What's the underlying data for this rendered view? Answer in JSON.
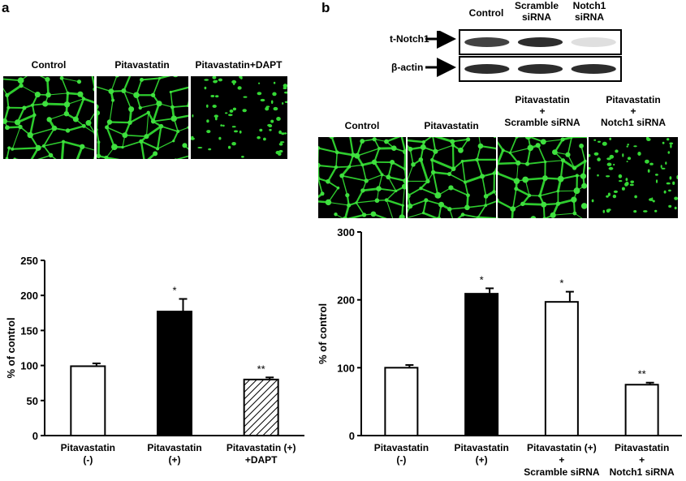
{
  "panel_a": {
    "letter": "a",
    "image_labels": [
      "Control",
      "Pitavastatin",
      "Pitavastatin+DAPT"
    ],
    "image_patterns": [
      "network-dense",
      "network-dense",
      "dots-sparse"
    ]
  },
  "panel_b": {
    "letter": "b",
    "blot": {
      "lane_labels": [
        [
          "Control"
        ],
        [
          "Scramble",
          "siRNA"
        ],
        [
          "Notch1",
          "siRNA"
        ]
      ],
      "bands": [
        "t-Notch1",
        "β-actin"
      ],
      "band_intensity": {
        "t-Notch1": [
          0.9,
          1.0,
          0.15
        ],
        "β-actin": [
          1.0,
          1.0,
          1.0
        ]
      }
    },
    "image_labels": [
      [
        "Control"
      ],
      [
        "Pitavastatin"
      ],
      [
        "Pitavastatin",
        "+",
        "Scramble siRNA"
      ],
      [
        "Pitavastatin",
        "+",
        "Notch1 siRNA"
      ]
    ],
    "image_patterns": [
      "network-dense",
      "network-dense",
      "network-dense",
      "dots-sparse"
    ]
  },
  "chart_data": [
    {
      "type": "bar",
      "ylabel": "% of control",
      "ylim": [
        0,
        250
      ],
      "yticks": [
        0,
        50,
        100,
        150,
        200,
        250
      ],
      "categories": [
        [
          "Pitavastatin",
          "(-)"
        ],
        [
          "Pitavastatin",
          "(+)"
        ],
        [
          "Pitavastatin (+)",
          "+DAPT"
        ]
      ],
      "values": [
        99,
        177,
        80
      ],
      "errors": [
        4,
        18,
        3
      ],
      "significance": [
        "",
        "*",
        "**"
      ],
      "fills": [
        "white",
        "black",
        "hatched"
      ]
    },
    {
      "type": "bar",
      "ylabel": "% of control",
      "ylim": [
        0,
        300
      ],
      "yticks": [
        0,
        100,
        200,
        300
      ],
      "categories": [
        [
          "Pitavastatin",
          "(-)"
        ],
        [
          "Pitavastatin",
          "(+)"
        ],
        [
          "Pitavastatin (+)",
          "+",
          "Scramble siRNA"
        ],
        [
          "Pitavastatin",
          "+",
          "Notch1 siRNA"
        ]
      ],
      "values": [
        100,
        209,
        197,
        75
      ],
      "errors": [
        4,
        8,
        15,
        3
      ],
      "significance": [
        "",
        "*",
        "*",
        "**"
      ],
      "fills": [
        "white",
        "black",
        "white",
        "white"
      ]
    }
  ]
}
